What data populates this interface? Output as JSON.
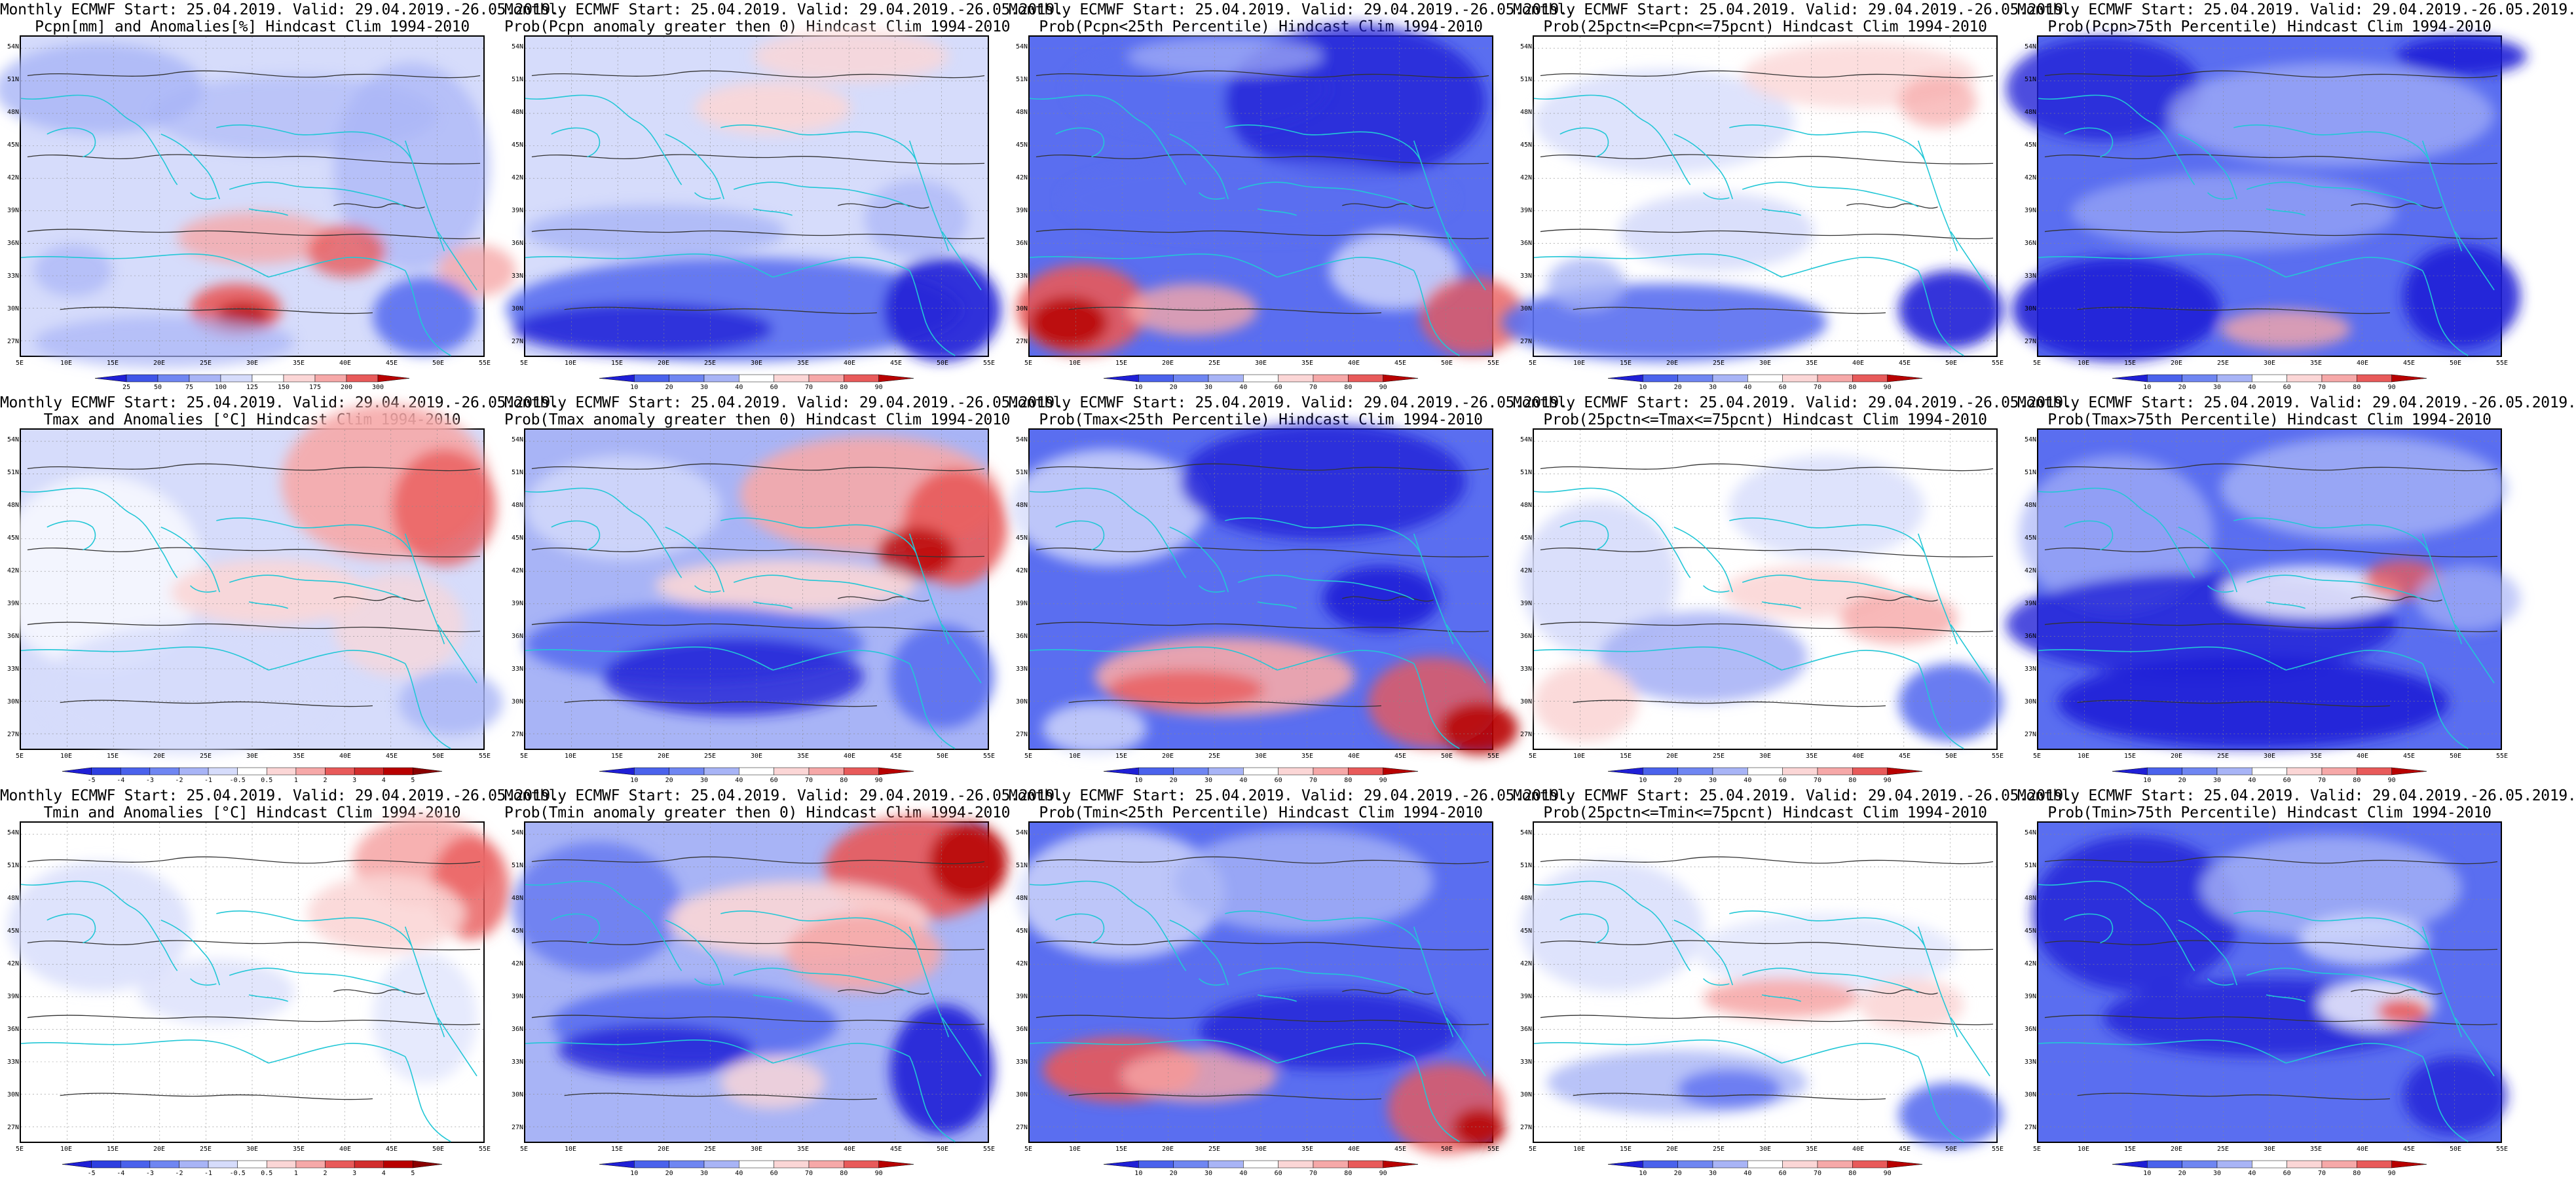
{
  "page": {
    "background": "#ffffff"
  },
  "axes": {
    "lat_labels": [
      "54N",
      "51N",
      "48N",
      "45N",
      "42N",
      "39N",
      "36N",
      "33N",
      "30N",
      "27N"
    ],
    "lon_labels": [
      "5E",
      "10E",
      "15E",
      "20E",
      "25E",
      "30E",
      "35E",
      "40E",
      "45E",
      "50E",
      "55E"
    ]
  },
  "colors": {
    "blue_dark": "#1f1fd6",
    "blue": "#5a6ef0",
    "blue_light": "#a8b4f6",
    "blue_pale": "#d6dcfb",
    "red_pale": "#fbd6d6",
    "red_light": "#f6a8a8",
    "red": "#e85a5a",
    "red_dark": "#b80000",
    "coast": "#22c7d6",
    "contour": "#333333"
  },
  "colorbars": {
    "pcpn": [
      "25",
      "50",
      "75",
      "100",
      "125",
      "150",
      "175",
      "200",
      "300"
    ],
    "prob": [
      "10",
      "20",
      "30",
      "40",
      "60",
      "70",
      "80",
      "90"
    ],
    "temp": [
      "-5",
      "-4",
      "-3",
      "-2",
      "-1",
      "-0.5",
      "0.5",
      "1",
      "2",
      "3",
      "4",
      "5"
    ]
  },
  "panels": [
    {
      "id": "pcpn-anom",
      "title1": "Monthly ECMWF Start: 25.04.2019. Valid: 29.04.2019.-26.05.2019.",
      "title2": "Pcpn[mm] and Anomalies[%] Hindcast Clim 1994-2010",
      "colorbar": "pcpn",
      "pattern": "pcpn-anom"
    },
    {
      "id": "pcpn-prob-gt0",
      "title1": "Monthly ECMWF Start: 25.04.2019. Valid: 29.04.2019.-26.05.2019.",
      "title2": "Prob(Pcpn anomaly greater then 0) Hindcast Clim 1994-2010",
      "colorbar": "prob",
      "pattern": "pcpn-gt0"
    },
    {
      "id": "pcpn-prob-lt25",
      "title1": "Monthly ECMWF Start: 25.04.2019. Valid: 29.04.2019.-26.05.2019.",
      "title2": "Prob(Pcpn<25th Percentile) Hindcast Clim 1994-2010",
      "colorbar": "prob",
      "pattern": "pcpn-lt25"
    },
    {
      "id": "pcpn-prob-mid",
      "title1": "Monthly ECMWF Start: 25.04.2019. Valid: 29.04.2019.-26.05.2019.",
      "title2": "Prob(25pctn<=Pcpn<=75pcnt) Hindcast Clim 1994-2010",
      "colorbar": "prob",
      "pattern": "pcpn-mid"
    },
    {
      "id": "pcpn-prob-gt75",
      "title1": "Monthly ECMWF Start: 25.04.2019. Valid: 29.04.2019.-26.05.2019.",
      "title2": "Prob(Pcpn>75th Percentile) Hindcast Clim 1994-2010",
      "colorbar": "prob",
      "pattern": "pcpn-gt75"
    },
    {
      "id": "tmax-anom",
      "title1": "Monthly ECMWF Start: 25.04.2019. Valid: 29.04.2019.-26.05.2019.",
      "title2": "Tmax and Anomalies [°C] Hindcast Clim 1994-2010",
      "colorbar": "temp",
      "pattern": "tmax-anom"
    },
    {
      "id": "tmax-prob-gt0",
      "title1": "Monthly ECMWF Start: 25.04.2019. Valid: 29.04.2019.-26.05.2019.",
      "title2": "Prob(Tmax anomaly greater then 0) Hindcast Clim 1994-2010",
      "colorbar": "prob",
      "pattern": "tmax-gt0"
    },
    {
      "id": "tmax-prob-lt25",
      "title1": "Monthly ECMWF Start: 25.04.2019. Valid: 29.04.2019.-26.05.2019.",
      "title2": "Prob(Tmax<25th Percentile) Hindcast Clim 1994-2010",
      "colorbar": "prob",
      "pattern": "tmax-lt25"
    },
    {
      "id": "tmax-prob-mid",
      "title1": "Monthly ECMWF Start: 25.04.2019. Valid: 29.04.2019.-26.05.2019.",
      "title2": "Prob(25pctn<=Tmax<=75pcnt) Hindcast Clim 1994-2010",
      "colorbar": "prob",
      "pattern": "tmax-mid"
    },
    {
      "id": "tmax-prob-gt75",
      "title1": "Monthly ECMWF Start: 25.04.2019. Valid: 29.04.2019.-26.05.2019.",
      "title2": "Prob(Tmax>75th Percentile) Hindcast Clim 1994-2010",
      "colorbar": "prob",
      "pattern": "tmax-gt75"
    },
    {
      "id": "tmin-anom",
      "title1": "Monthly ECMWF Start: 25.04.2019. Valid: 29.04.2019.-26.05.2019.",
      "title2": "Tmin and Anomalies [°C] Hindcast Clim 1994-2010",
      "colorbar": "temp",
      "pattern": "tmin-anom"
    },
    {
      "id": "tmin-prob-gt0",
      "title1": "Monthly ECMWF Start: 25.04.2019. Valid: 29.04.2019.-26.05.2019.",
      "title2": "Prob(Tmin anomaly greater then 0) Hindcast Clim 1994-2010",
      "colorbar": "prob",
      "pattern": "tmin-gt0"
    },
    {
      "id": "tmin-prob-lt25",
      "title1": "Monthly ECMWF Start: 25.04.2019. Valid: 29.04.2019.-26.05.2019.",
      "title2": "Prob(Tmin<25th Percentile) Hindcast Clim 1994-2010",
      "colorbar": "prob",
      "pattern": "tmin-lt25"
    },
    {
      "id": "tmin-prob-mid",
      "title1": "Monthly ECMWF Start: 25.04.2019. Valid: 29.04.2019.-26.05.2019.",
      "title2": "Prob(25pctn<=Tmin<=75pcnt) Hindcast Clim 1994-2010",
      "colorbar": "prob",
      "pattern": "tmin-mid"
    },
    {
      "id": "tmin-prob-gt75",
      "title1": "Monthly ECMWF Start: 25.04.2019. Valid: 29.04.2019.-26.05.2019.",
      "title2": "Prob(Tmin>75th Percentile) Hindcast Clim 1994-2010",
      "colorbar": "prob",
      "pattern": "tmin-gt75"
    }
  ]
}
